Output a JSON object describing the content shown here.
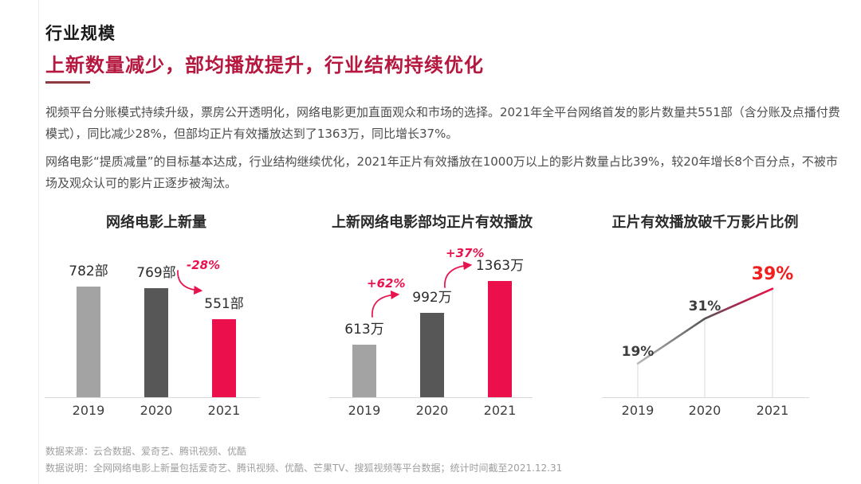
{
  "page": {
    "title": "行业规模",
    "subtitle": "上新数量减少，部均播放提升，行业结构持续优化",
    "paragraph1": "视频平台分账模式持续升级，票房公开透明化，网络电影更加直面观众和市场的选择。2021年全平台网络首发的影片数量共551部（含分账及点播付费模式），同比减少28%，但部均正片有效播放达到了1363万，同比增长37%。",
    "paragraph2": "网络电影“提质减量”的目标基本达成，行业结构继续优化，2021年正片有效播放在1000万以上的影片数量占比39%，较20年增长8个百分点，不被市场及观众认可的影片正逐步被淘汰。",
    "footer": {
      "source": "数据来源：云合数据、爱奇艺、腾讯视频、优酷",
      "note": "数据说明：全网网络电影上新量包括爱奇艺、腾讯视频、优酷、芒果TV、搜狐视频等平台数据；统计时间截至2021.12.31"
    }
  },
  "colors": {
    "accent_red": "#eb0f4b",
    "subtitle_red": "#b5173f",
    "annotation_red": "#e8134d",
    "highlight_red": "#f21d1d",
    "bar_gray_light": "#a3a3a3",
    "bar_gray_dark": "#575757",
    "axis_gray": "#d9d9d9"
  },
  "chart_data": [
    {
      "type": "bar",
      "title": "网络电影上新量",
      "categories": [
        "2019",
        "2020",
        "2021"
      ],
      "values": [
        782,
        769,
        551
      ],
      "value_labels": [
        "782部",
        "769部",
        "551部"
      ],
      "bar_colors": [
        "#a3a3a3",
        "#575757",
        "#eb0f4b"
      ],
      "annotations": [
        {
          "text": "-28%",
          "from": "2020",
          "to": "2021"
        }
      ],
      "ylim": [
        0,
        900
      ],
      "grid": false,
      "legend": "none"
    },
    {
      "type": "bar",
      "title": "上新网络电影部均正片有效播放",
      "categories": [
        "2019",
        "2020",
        "2021"
      ],
      "values": [
        613,
        992,
        1363
      ],
      "value_labels": [
        "613万",
        "992万",
        "1363万"
      ],
      "bar_colors": [
        "#a3a3a3",
        "#575757",
        "#eb0f4b"
      ],
      "annotations": [
        {
          "text": "+62%",
          "from": "2019",
          "to": "2020"
        },
        {
          "text": "+37%",
          "from": "2020",
          "to": "2021"
        }
      ],
      "ylim": [
        0,
        1500
      ],
      "grid": false,
      "legend": "none"
    },
    {
      "type": "line",
      "title": "正片有效播放破千万影片比例",
      "categories": [
        "2019",
        "2020",
        "2021"
      ],
      "values": [
        19,
        31,
        39
      ],
      "value_labels": [
        "19%",
        "31%",
        "39%"
      ],
      "line_colors": [
        "#a3a3a3",
        "#575757",
        "#eb0f4b"
      ],
      "grid": false,
      "legend": "none"
    }
  ]
}
